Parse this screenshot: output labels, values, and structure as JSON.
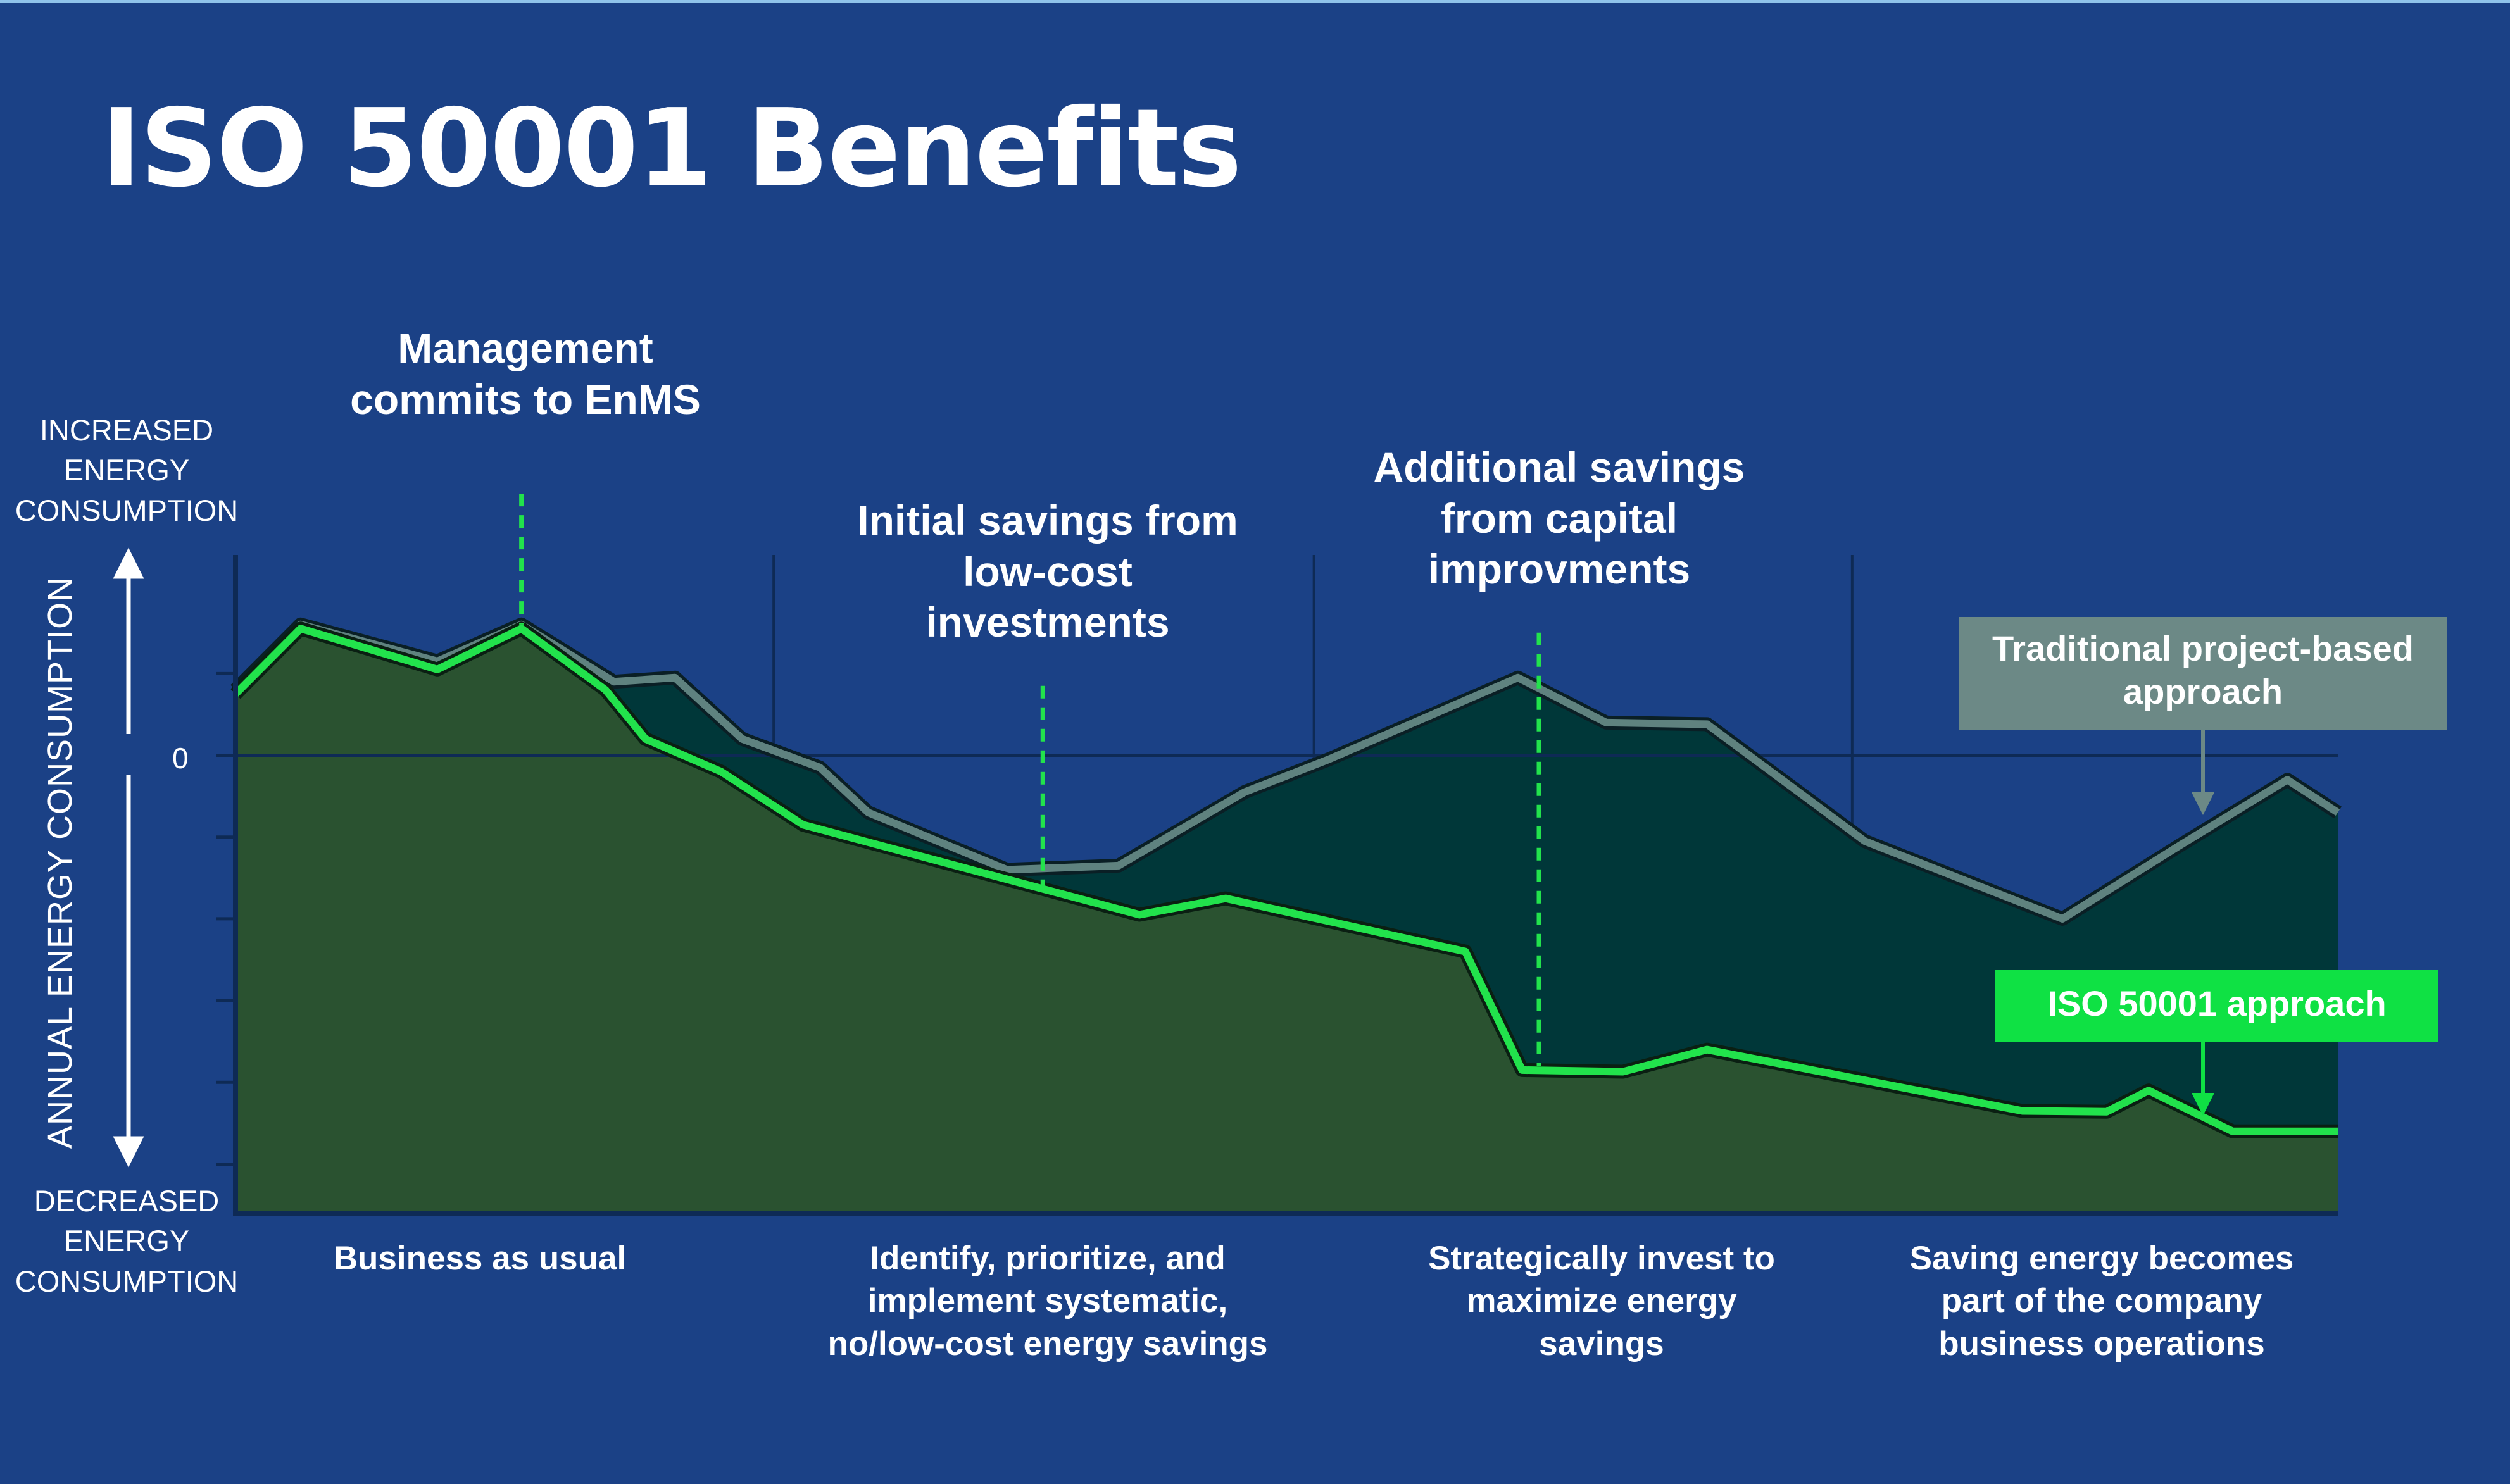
{
  "title": "ISO 50001 Benefits",
  "colors": {
    "background": "#1b4186",
    "iso_line": "#22e24c",
    "traditional_line": "#5f827f",
    "iso_fill": "#2a5230",
    "traditional_fill": "#003739",
    "milestone_marker": "#22e24c",
    "legend_traditional_bg": "#6c8986",
    "legend_iso_bg": "#0fe144"
  },
  "chart_data": {
    "type": "area",
    "ylabel": "ANNUAL ENERGY CONSUMPTION",
    "y_top_label": "INCREASED ENERGY CONSUMPTION",
    "y_bottom_label": "DECREASED ENERGY CONSUMPTION",
    "y_tick_labels": [
      "0"
    ],
    "ylim": [
      -5.6,
      2.45
    ],
    "xlim": [
      0,
      100
    ],
    "phase_boundaries": [
      25.6,
      51.3,
      76.9
    ],
    "phases": [
      "Business as usual",
      "Identify, prioritize, and implement systematic, no/low-cost energy savings",
      "Strategically invest to maximize energy savings",
      "Saving energy becomes part of the company business operations"
    ],
    "annotations": [
      {
        "text": "Management commits to EnMS",
        "x": 13.6,
        "y": 3.2
      },
      {
        "text": "Initial savings from low-cost investments",
        "x": 38.4,
        "y": 1.8
      },
      {
        "text": "Additional savings from capital improvments",
        "x": 62.0,
        "y": 2.3
      }
    ],
    "milestones": [
      {
        "x": 13.6,
        "y_start": 3.2,
        "y_end": 1.6
      },
      {
        "x": 38.4,
        "y_start": 0.85,
        "y_end": -1.65
      },
      {
        "x": 62.0,
        "y_start": 1.5,
        "y_end": -3.8
      }
    ],
    "series": [
      {
        "name": "Traditional project-based approach",
        "color": "#5f827f",
        "points": [
          [
            0,
            0.8
          ],
          [
            3.1,
            1.6
          ],
          [
            9.6,
            1.15
          ],
          [
            13.6,
            1.6
          ],
          [
            18.0,
            0.9
          ],
          [
            20.9,
            0.95
          ],
          [
            24.1,
            0.2
          ],
          [
            27.8,
            -0.15
          ],
          [
            30.1,
            -0.7
          ],
          [
            36.7,
            -1.4
          ],
          [
            42.0,
            -1.35
          ],
          [
            48.0,
            -0.45
          ],
          [
            52.0,
            -0.05
          ],
          [
            61.0,
            0.95
          ],
          [
            65.2,
            0.4
          ],
          [
            70.0,
            0.38
          ],
          [
            77.5,
            -1.05
          ],
          [
            86.9,
            -2.0
          ],
          [
            92.5,
            -1.1
          ],
          [
            97.6,
            -0.3
          ],
          [
            100,
            -0.7
          ]
        ]
      },
      {
        "name": "ISO 50001 approach",
        "color": "#22e24c",
        "points": [
          [
            0,
            0.75
          ],
          [
            3.1,
            1.55
          ],
          [
            9.6,
            1.05
          ],
          [
            13.6,
            1.55
          ],
          [
            17.6,
            0.8
          ],
          [
            19.5,
            0.2
          ],
          [
            23.1,
            -0.2
          ],
          [
            27.0,
            -0.85
          ],
          [
            35.0,
            -1.4
          ],
          [
            43.0,
            -1.95
          ],
          [
            47.1,
            -1.75
          ],
          [
            58.5,
            -2.4
          ],
          [
            61.2,
            -3.85
          ],
          [
            66.0,
            -3.87
          ],
          [
            70.0,
            -3.6
          ],
          [
            85.0,
            -4.35
          ],
          [
            89.0,
            -4.36
          ],
          [
            91.0,
            -4.1
          ],
          [
            95.0,
            -4.6
          ],
          [
            100,
            -4.6
          ]
        ]
      }
    ],
    "legend": [
      {
        "series": "Traditional project-based approach",
        "position": "upper-right"
      },
      {
        "series": "ISO 50001 approach",
        "position": "lower-right"
      }
    ],
    "grid": false
  }
}
